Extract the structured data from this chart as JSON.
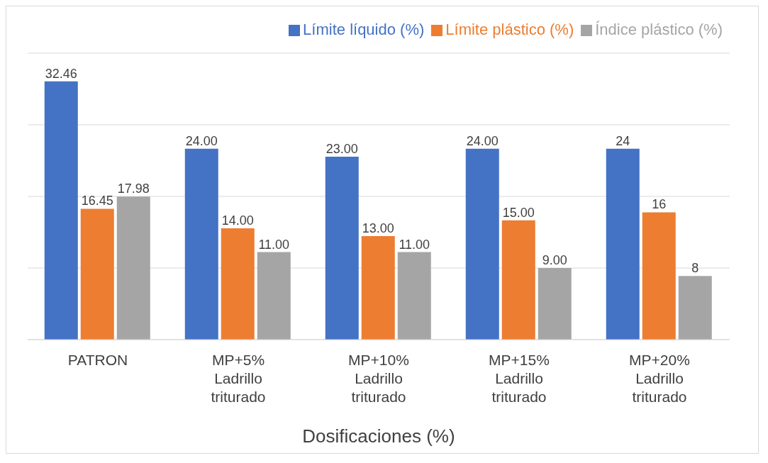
{
  "chart_data": {
    "type": "bar",
    "xlabel": "Dosificaciones (%)",
    "categories": [
      "PATRON",
      "MP+5% Ladrillo triturado",
      "MP+10% Ladrillo triturado",
      "MP+15% Ladrillo triturado",
      "MP+20% Ladrillo triturado"
    ],
    "series": [
      {
        "name": "Límite líquido (%)",
        "color": "#4472c4",
        "values": [
          32.46,
          24,
          23,
          24,
          24
        ],
        "value_labels": [
          "32.46",
          "24.00",
          "23.00",
          "24.00",
          "24"
        ]
      },
      {
        "name": "Límite plástico (%)",
        "color": "#ed7d31",
        "values": [
          16.45,
          14,
          13,
          15,
          16
        ],
        "value_labels": [
          "16.45",
          "14.00",
          "13.00",
          "15.00",
          "16"
        ]
      },
      {
        "name": "Índice plástico (%)",
        "color": "#a5a5a5",
        "values": [
          17.98,
          11,
          11,
          9,
          8
        ],
        "value_labels": [
          "17.98",
          "11.00",
          "11.00",
          "9.00",
          "8"
        ]
      }
    ],
    "grid": "y",
    "legend": "top right"
  }
}
